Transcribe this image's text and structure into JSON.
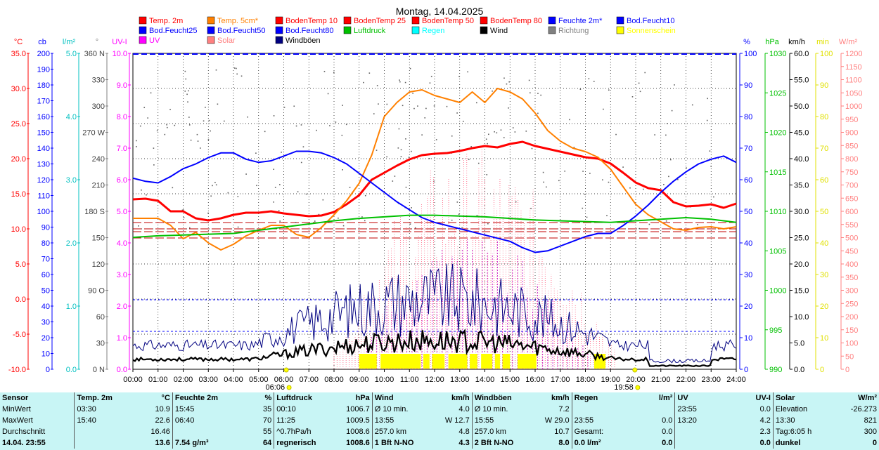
{
  "chart_data": {
    "type": "line",
    "title": "Montag, 14.04.2025",
    "x_ticks": [
      "00:00",
      "01:00",
      "02:00",
      "03:00",
      "04:00",
      "05:00",
      "06:00",
      "07:00",
      "08:00",
      "09:00",
      "10:00",
      "11:00",
      "12:00",
      "13:00",
      "14:00",
      "15:00",
      "16:00",
      "17:00",
      "18:00",
      "19:00",
      "20:00",
      "21:00",
      "22:00",
      "23:00",
      "24:00"
    ],
    "sunrise": "06:06",
    "sunset": "19:58",
    "legend": [
      {
        "name": "Temp. 2m",
        "color": "#ff0000"
      },
      {
        "name": "Temp. 5cm*",
        "color": "#ff8000"
      },
      {
        "name": "BodenTemp 10",
        "color": "#ff0000"
      },
      {
        "name": "BodenTemp 25",
        "color": "#ff0000"
      },
      {
        "name": "BodenTemp 50",
        "color": "#ff0000"
      },
      {
        "name": "BodenTemp 80",
        "color": "#ff0000"
      },
      {
        "name": "Feuchte 2m*",
        "color": "#0000ff"
      },
      {
        "name": "Bod.Feucht10",
        "color": "#0000ff"
      },
      {
        "name": "Bod.Feucht25",
        "color": "#0000ff"
      },
      {
        "name": "Bod.Feucht50",
        "color": "#0000ff"
      },
      {
        "name": "Bod.Feucht80",
        "color": "#0000ff"
      },
      {
        "name": "Luftdruck",
        "color": "#00c000"
      },
      {
        "name": "Regen",
        "color": "#00ffff"
      },
      {
        "name": "Wind",
        "color": "#000000"
      },
      {
        "name": "Richtung",
        "color": "#808080"
      },
      {
        "name": "Sonnenschein",
        "color": "#ffff00"
      },
      {
        "name": "UV",
        "color": "#ff00ff"
      },
      {
        "name": "Solar",
        "color": "#ff8080"
      },
      {
        "name": "Windböen",
        "color": "#000080"
      }
    ],
    "axes_left": [
      {
        "unit": "°C",
        "color": "#ff0000",
        "ticks": [
          "35.0",
          "30.0",
          "25.0",
          "20.0",
          "15.0",
          "10.0",
          "5.0",
          "0.0",
          "-5.0",
          "-10.0"
        ]
      },
      {
        "unit": "cb",
        "color": "#0000ff",
        "ticks": [
          "200",
          "190",
          "180",
          "170",
          "160",
          "150",
          "140",
          "130",
          "120",
          "110",
          "100",
          "90",
          "80",
          "70",
          "60",
          "50",
          "40",
          "30",
          "20",
          "10",
          "0"
        ]
      },
      {
        "unit": "l/m²",
        "color": "#00c0c0",
        "ticks": [
          "5.0",
          "4.0",
          "3.0",
          "2.0",
          "1.0",
          "0.0"
        ]
      },
      {
        "unit": "°",
        "color": "#808080",
        "ticks": [
          "360 N",
          "330",
          "300",
          "270 W",
          "240",
          "210",
          "180 S",
          "150",
          "120",
          "90 O",
          "60",
          "30",
          "0 N"
        ]
      },
      {
        "unit": "UV-I",
        "color": "#ff00ff",
        "ticks": [
          "10.0",
          "9.0",
          "8.0",
          "7.0",
          "6.0",
          "5.0",
          "4.0",
          "3.0",
          "2.0",
          "1.0",
          "0.0"
        ]
      }
    ],
    "axes_right": [
      {
        "unit": "%",
        "color": "#0000ff",
        "ticks": [
          "100",
          "90",
          "80",
          "70",
          "60",
          "50",
          "40",
          "30",
          "20",
          "10",
          "0"
        ]
      },
      {
        "unit": "hPa",
        "color": "#00c000",
        "ticks": [
          "1030",
          "1025",
          "1020",
          "1015",
          "1010",
          "1005",
          "1000",
          "995",
          "990"
        ]
      },
      {
        "unit": "km/h",
        "color": "#000000",
        "ticks": [
          "60.0",
          "55.0",
          "50.0",
          "45.0",
          "40.0",
          "35.0",
          "30.0",
          "25.0",
          "20.0",
          "15.0",
          "10.0",
          "5.0",
          "0.0"
        ]
      },
      {
        "unit": "min",
        "color": "#e0e000",
        "ticks": [
          "100",
          "90",
          "80",
          "70",
          "60",
          "50",
          "40",
          "30",
          "20",
          "10",
          "0"
        ]
      },
      {
        "unit": "W/m²",
        "color": "#ff8080",
        "ticks": [
          "1200",
          "1150",
          "1100",
          "1050",
          "1000",
          "950",
          "900",
          "850",
          "800",
          "750",
          "700",
          "650",
          "600",
          "550",
          "500",
          "450",
          "400",
          "350",
          "300",
          "250",
          "200",
          "150",
          "100",
          "50",
          "0"
        ]
      }
    ],
    "temp_range": [
      -10,
      35
    ],
    "pct_range": [
      0,
      100
    ],
    "hpa_range": [
      990,
      1030
    ],
    "kmh_range": [
      0,
      60
    ],
    "wm2_range": [
      0,
      1200
    ],
    "series": [
      {
        "key": "temp2m",
        "color": "#ff0000",
        "width": 3,
        "unit": "°C",
        "t": [
          0,
          0.5,
          1,
          1.5,
          2,
          2.5,
          3,
          3.5,
          4,
          4.5,
          5,
          5.5,
          6,
          6.5,
          7,
          7.5,
          8,
          8.5,
          9,
          9.5,
          10,
          10.5,
          11,
          11.5,
          12,
          12.5,
          13,
          13.5,
          14,
          14.5,
          15,
          15.5,
          16,
          16.5,
          17,
          17.5,
          18,
          18.5,
          19,
          19.5,
          20,
          20.5,
          21,
          21.5,
          22,
          22.5,
          23,
          23.5,
          24
        ],
        "v": [
          14.2,
          14.3,
          14.0,
          12.5,
          12.5,
          11.5,
          11.2,
          11.5,
          12.0,
          12.3,
          12.3,
          12.5,
          12.2,
          12.0,
          11.8,
          11.9,
          12.4,
          13.5,
          14.8,
          17.0,
          18.0,
          19.0,
          19.9,
          20.5,
          20.7,
          20.8,
          21.1,
          21.5,
          21.8,
          21.6,
          22.1,
          22.4,
          21.8,
          21.4,
          21.0,
          20.6,
          20.2,
          20.0,
          19.3,
          18.0,
          16.6,
          15.8,
          15.5,
          13.8,
          13.2,
          13.3,
          13.5,
          13.0,
          13.6
        ]
      },
      {
        "key": "temp5cm",
        "color": "#ff8000",
        "width": 2,
        "unit": "°C",
        "t": [
          0,
          1,
          1.5,
          2,
          2.5,
          3,
          3.5,
          4,
          4.5,
          5,
          5.5,
          6,
          6.5,
          7,
          7.5,
          8,
          8.5,
          9,
          9.5,
          10,
          10.5,
          11,
          11.5,
          12,
          12.5,
          13,
          13.5,
          14,
          14.5,
          15,
          15.5,
          16,
          16.5,
          17,
          17.5,
          18,
          18.5,
          19,
          19.5,
          20,
          20.5,
          21,
          21.5,
          22,
          22.5,
          23,
          23.5,
          24
        ],
        "v": [
          11.5,
          11.5,
          10.5,
          8.6,
          9.5,
          8.0,
          7.0,
          7.8,
          9.0,
          9.8,
          10.5,
          10.5,
          9.2,
          8.8,
          10.2,
          12.0,
          14.0,
          16.5,
          20.5,
          26.0,
          28.0,
          29.5,
          29.8,
          29.0,
          28.5,
          28.0,
          29.5,
          28.0,
          30.0,
          29.5,
          28.5,
          26.5,
          24.0,
          22.5,
          21.5,
          21.0,
          20.2,
          18.5,
          16.0,
          13.5,
          12.0,
          11.0,
          10.0,
          9.8,
          10.2,
          10.3,
          10.0,
          10.3
        ]
      },
      {
        "key": "feuchte",
        "color": "#0000ff",
        "width": 2,
        "unit": "%",
        "t": [
          0,
          0.5,
          1,
          1.5,
          2,
          2.5,
          3,
          3.5,
          4,
          4.5,
          5,
          5.5,
          6,
          6.5,
          7,
          7.5,
          8,
          8.5,
          9,
          9.5,
          10,
          10.5,
          11,
          11.5,
          12,
          12.5,
          13,
          13.5,
          14,
          14.5,
          15,
          15.5,
          16,
          16.5,
          17,
          17.5,
          18,
          18.5,
          19,
          19.5,
          20,
          20.5,
          21,
          21.5,
          22,
          22.5,
          23,
          23.5,
          24
        ],
        "v": [
          60.5,
          59.5,
          59.0,
          61.0,
          63.5,
          65.0,
          67.0,
          68.5,
          68.5,
          66.5,
          65.5,
          66.0,
          67.5,
          69.0,
          69.0,
          68.5,
          67.0,
          65.0,
          62.0,
          59.0,
          56.0,
          53.0,
          50.5,
          48.0,
          46.5,
          45.5,
          44.5,
          43.5,
          42.5,
          41.5,
          40.5,
          38.5,
          37.0,
          37.5,
          39.0,
          40.5,
          42.0,
          43.0,
          43.0,
          45.5,
          48.5,
          52.0,
          56.0,
          59.5,
          62.5,
          65.0,
          66.5,
          67.5,
          65.5
        ]
      },
      {
        "key": "luftdruck",
        "color": "#00c000",
        "width": 2,
        "unit": "hPa",
        "t": [
          0,
          1,
          2,
          3,
          4,
          5,
          6,
          7,
          8,
          9,
          10,
          11,
          12,
          13,
          14,
          15,
          16,
          17,
          18,
          19,
          20,
          21,
          22,
          23,
          24
        ],
        "v": [
          1006.7,
          1006.9,
          1007.0,
          1007.1,
          1007.2,
          1007.6,
          1008.0,
          1008.4,
          1008.8,
          1009.1,
          1009.3,
          1009.5,
          1009.5,
          1009.4,
          1009.3,
          1009.1,
          1008.9,
          1008.8,
          1008.7,
          1008.6,
          1008.8,
          1009.0,
          1009.2,
          1009.0,
          1008.6
        ]
      }
    ],
    "soil_temps": [
      {
        "color": "#c00000",
        "value": 10.9
      },
      {
        "color": "#c00000",
        "value": 10.0
      },
      {
        "color": "#c00000",
        "value": 9.6
      },
      {
        "color": "#c00000",
        "value": 8.7
      }
    ],
    "ref_lines_pct": [
      22,
      12
    ],
    "sunshine_blocks": [
      [
        9.0,
        9.7
      ],
      [
        9.85,
        11.45
      ],
      [
        11.55,
        11.8
      ],
      [
        11.9,
        12.4
      ],
      [
        12.55,
        13.3
      ],
      [
        13.4,
        13.7
      ],
      [
        13.85,
        14.3
      ],
      [
        14.4,
        14.6
      ],
      [
        14.7,
        15.0
      ],
      [
        15.3,
        16.05
      ],
      [
        18.35,
        18.8
      ]
    ]
  },
  "stats": {
    "headers": [
      "Sensor",
      "Temp. 2m",
      "°C",
      "Feuchte 2m",
      "%",
      "Luftdruck",
      "hPa",
      "Wind",
      "km/h",
      "Windböen",
      "km/h",
      "Regen",
      "l/m²",
      "UV",
      "UV-I",
      "Solar",
      "W/m²"
    ],
    "rows": [
      [
        "MinWert",
        "03:30",
        "10.9",
        "15:45",
        "35",
        "00:10",
        "1006.7",
        "Ø 10 min.",
        "4.0",
        "Ø 10 min.",
        "7.2",
        "",
        "",
        "23:55",
        "0.0",
        "Elevation",
        "-26.273"
      ],
      [
        "MaxWert",
        "15:40",
        "22.6",
        "06:40",
        "70",
        "11:25",
        "1009.5",
        "13:55",
        "W 12.7",
        "15:55",
        "W 29.0",
        "23:55",
        "0.0",
        "13:20",
        "4.2",
        "13:30",
        "821"
      ],
      [
        "Durchschnitt",
        "",
        "16.46",
        "",
        "55",
        "^0.7hPa/h",
        "1008.6",
        "257.0 km",
        "4.8",
        "257.0 km",
        "10.7",
        "Gesamt:",
        "0.0",
        "",
        "2.3",
        "Tag:6:05 h",
        "300"
      ],
      [
        "14.04. 23:55",
        "",
        "13.6",
        "7.54 g/m³",
        "64",
        "regnerisch",
        "1008.6",
        "1 Bft N-NO",
        "4.3",
        "2 Bft N-NO",
        "8.0",
        "0.0 l/m²",
        "0.0",
        "",
        "0.0",
        "dunkel",
        "0"
      ]
    ]
  }
}
